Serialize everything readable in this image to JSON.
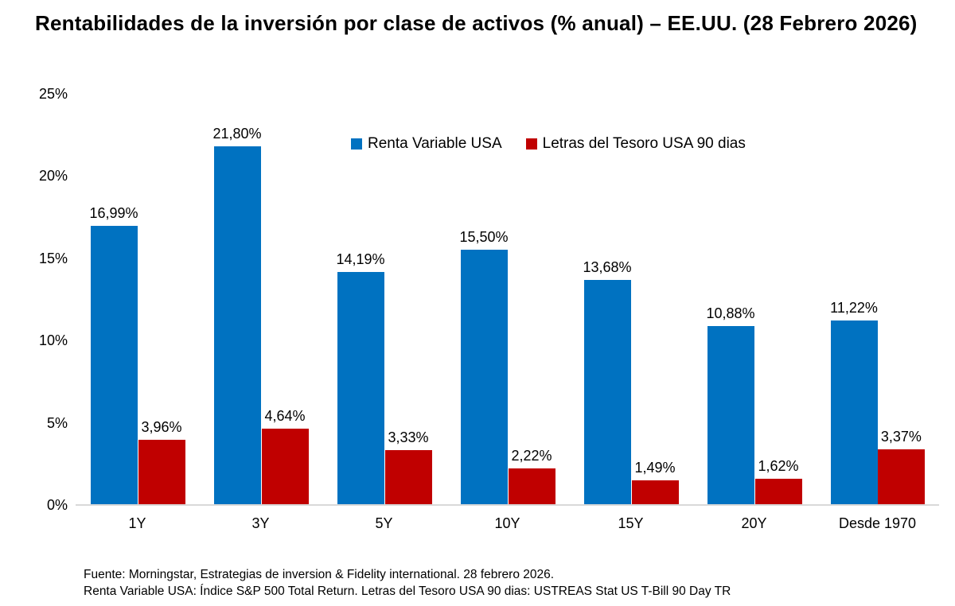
{
  "title": "Rentabilidades de la inversión por clase de activos (% anual) – EE.UU. (28 Febrero 2026)",
  "chart_data": {
    "type": "bar",
    "categories": [
      "1Y",
      "3Y",
      "5Y",
      "10Y",
      "15Y",
      "20Y",
      "Desde 1970"
    ],
    "series": [
      {
        "name": "Renta Variable USA",
        "color": "#0072C1",
        "values": [
          16.99,
          21.8,
          14.19,
          15.5,
          13.68,
          10.88,
          11.22
        ],
        "labels": [
          "16,99%",
          "21,80%",
          "14,19%",
          "15,50%",
          "13,68%",
          "10,88%",
          "11,22%"
        ]
      },
      {
        "name": "Letras del Tesoro USA 90 dias",
        "color": "#C00000",
        "values": [
          3.96,
          4.64,
          3.33,
          2.22,
          1.49,
          1.62,
          3.37
        ],
        "labels": [
          "3,96%",
          "4,64%",
          "3,33%",
          "2,22%",
          "1,49%",
          "1,62%",
          "3,37%"
        ]
      }
    ],
    "xlabel": "",
    "ylabel": "",
    "ylim": [
      0,
      25
    ],
    "yticks": [
      {
        "value": 0,
        "label": "0%"
      },
      {
        "value": 5,
        "label": "5%"
      },
      {
        "value": 10,
        "label": "10%"
      },
      {
        "value": 15,
        "label": "15%"
      },
      {
        "value": 20,
        "label": "20%"
      },
      {
        "value": 25,
        "label": "25%"
      }
    ],
    "grid": false,
    "legend_position": "top-center-inside",
    "baseline_color": "#D9D9D9"
  },
  "footer": {
    "line1": "Fuente: Morningstar, Estrategias de inversion & Fidelity international. 28 febrero 2026.",
    "line2": "Renta Variable USA: Índice S&P 500 Total Return. Letras del Tesoro USA 90 dias: USTREAS Stat US T-Bill 90 Day TR"
  }
}
